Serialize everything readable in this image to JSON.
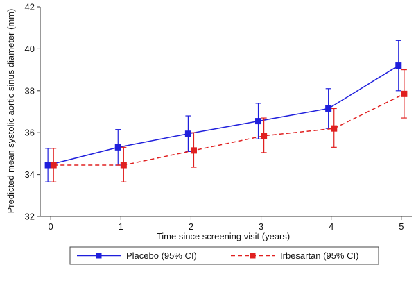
{
  "chart_data": {
    "type": "line",
    "title": "",
    "xlabel": "Time since screening visit (years)",
    "ylabel": "Predicted mean systolic aortic sinus diameter (mm)",
    "x": [
      0,
      1,
      2,
      3,
      4,
      5
    ],
    "xlim": [
      -0.15,
      5.15
    ],
    "ylim": [
      32,
      42
    ],
    "xticks": [
      "0",
      "1",
      "2",
      "3",
      "4",
      "5"
    ],
    "yticks": [
      "32",
      "34",
      "36",
      "38",
      "40",
      "42"
    ],
    "grid": false,
    "legend_position": "bottom",
    "series": [
      {
        "name": "Placebo (95% CI)",
        "color": "#1f1fdc",
        "line_style": "solid",
        "marker": "square",
        "values": [
          34.45,
          35.3,
          35.95,
          36.55,
          37.15,
          39.2
        ],
        "ci_low": [
          33.65,
          34.45,
          35.1,
          35.7,
          36.2,
          38.0
        ],
        "ci_high": [
          35.25,
          36.15,
          36.8,
          37.4,
          38.1,
          40.4
        ]
      },
      {
        "name": "Irbesartan (95% CI)",
        "color": "#e02020",
        "line_style": "dashed",
        "marker": "square",
        "values": [
          34.45,
          34.45,
          35.15,
          35.85,
          36.2,
          37.85
        ],
        "ci_low": [
          33.65,
          33.65,
          34.35,
          35.05,
          35.3,
          36.7
        ],
        "ci_high": [
          35.25,
          35.3,
          36.0,
          36.7,
          37.15,
          39.0
        ]
      }
    ]
  }
}
